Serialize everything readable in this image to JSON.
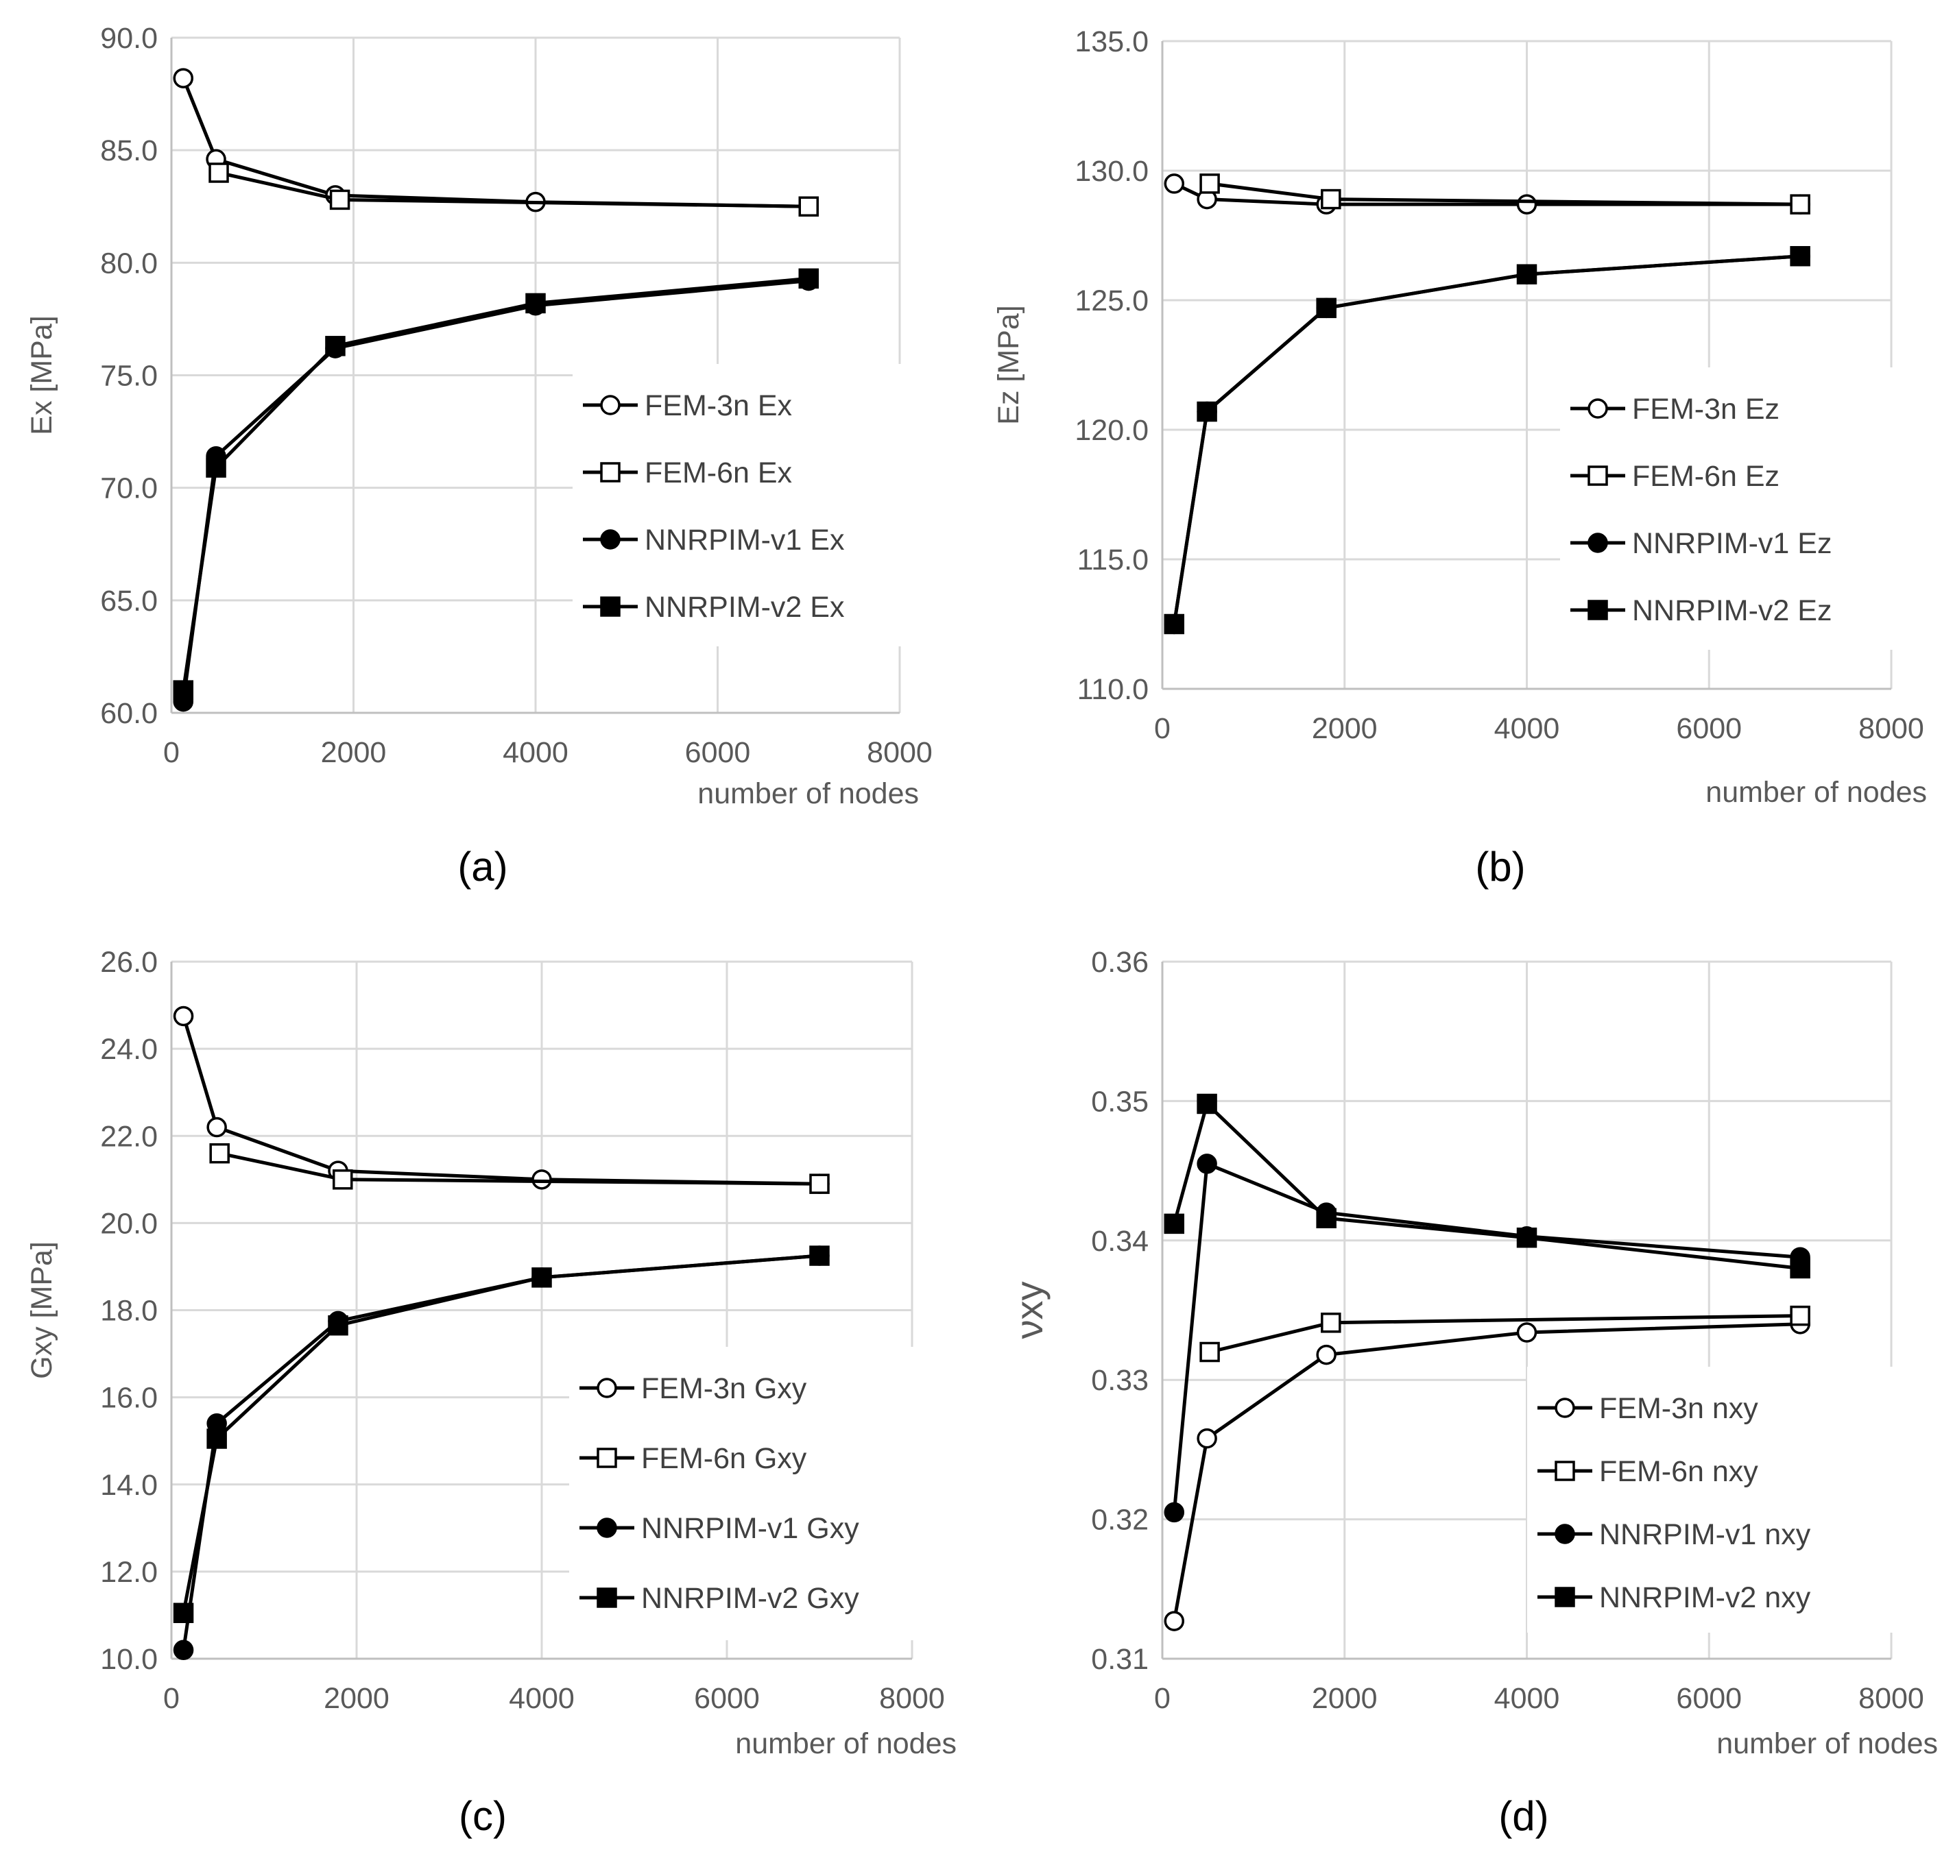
{
  "chart_data": [
    {
      "type": "line",
      "panel_label": "(a)",
      "ylabel": "Ex [MPa]",
      "xlabel": "number of nodes",
      "xlim": [
        0,
        8000
      ],
      "ylim": [
        60,
        90
      ],
      "xticks": [
        0,
        2000,
        4000,
        6000,
        8000
      ],
      "xtick_labels": [
        "0",
        "2000",
        "4000",
        "6000",
        "8000"
      ],
      "yticks": [
        60,
        65,
        70,
        75,
        80,
        85,
        90
      ],
      "ytick_labels": [
        "60.0",
        "65.0",
        "70.0",
        "75.0",
        "80.0",
        "85.0",
        "90.0"
      ],
      "grid": true,
      "legend_position": "right",
      "series": [
        {
          "name": "FEM-3n Ex",
          "marker": "circle-open",
          "x": [
            130,
            490,
            1800,
            4000,
            7000
          ],
          "y": [
            88.2,
            84.6,
            83.0,
            82.7,
            82.5
          ]
        },
        {
          "name": "FEM-6n Ex",
          "marker": "square-open",
          "x": [
            520,
            1850,
            7000
          ],
          "y": [
            84.0,
            82.8,
            82.5
          ]
        },
        {
          "name": "NNRPIM-v1 Ex",
          "marker": "circle-filled",
          "x": [
            130,
            490,
            1800,
            4000,
            7000
          ],
          "y": [
            60.5,
            71.4,
            76.2,
            78.1,
            79.2
          ]
        },
        {
          "name": "NNRPIM-v2 Ex",
          "marker": "square-filled",
          "x": [
            130,
            490,
            1800,
            4000,
            7000
          ],
          "y": [
            61.0,
            70.9,
            76.3,
            78.2,
            79.3
          ]
        }
      ]
    },
    {
      "type": "line",
      "panel_label": "(b)",
      "ylabel": "Ez [MPa]",
      "xlabel": "number of nodes",
      "xlim": [
        0,
        8000
      ],
      "ylim": [
        110,
        135
      ],
      "xticks": [
        0,
        2000,
        4000,
        6000,
        8000
      ],
      "xtick_labels": [
        "0",
        "2000",
        "4000",
        "6000",
        "8000"
      ],
      "yticks": [
        110,
        115,
        120,
        125,
        130,
        135
      ],
      "ytick_labels": [
        "110.0",
        "115.0",
        "120.0",
        "125.0",
        "130.0",
        "135.0"
      ],
      "grid": true,
      "legend_position": "right",
      "series": [
        {
          "name": "FEM-3n Ez",
          "marker": "circle-open",
          "x": [
            130,
            490,
            1800,
            4000,
            7000
          ],
          "y": [
            129.5,
            128.9,
            128.7,
            128.7,
            128.7
          ]
        },
        {
          "name": "FEM-6n Ez",
          "marker": "square-open",
          "x": [
            520,
            1850,
            7000
          ],
          "y": [
            129.5,
            128.9,
            128.7
          ]
        },
        {
          "name": "NNRPIM-v1 Ez",
          "marker": "circle-filled",
          "x": [
            130,
            490,
            1800,
            4000,
            7000
          ],
          "y": [
            112.5,
            120.7,
            124.7,
            126.0,
            126.7
          ]
        },
        {
          "name": "NNRPIM-v2 Ez",
          "marker": "square-filled",
          "x": [
            130,
            490,
            1800,
            4000,
            7000
          ],
          "y": [
            112.5,
            120.7,
            124.7,
            126.0,
            126.7
          ]
        }
      ]
    },
    {
      "type": "line",
      "panel_label": "(c)",
      "ylabel": "Gxy [MPa]",
      "xlabel": "number of nodes",
      "xlim": [
        0,
        8000
      ],
      "ylim": [
        10,
        26
      ],
      "xticks": [
        0,
        2000,
        4000,
        6000,
        8000
      ],
      "xtick_labels": [
        "0",
        "2000",
        "4000",
        "6000",
        "8000"
      ],
      "yticks": [
        10,
        12,
        14,
        16,
        18,
        20,
        22,
        24,
        26
      ],
      "ytick_labels": [
        "10.0",
        "12.0",
        "14.0",
        "16.0",
        "18.0",
        "20.0",
        "22.0",
        "24.0",
        "26.0"
      ],
      "grid": true,
      "legend_position": "right",
      "series": [
        {
          "name": "FEM-3n Gxy",
          "marker": "circle-open",
          "x": [
            130,
            490,
            1800,
            4000,
            7000
          ],
          "y": [
            24.75,
            22.2,
            21.2,
            21.0,
            20.9
          ]
        },
        {
          "name": "FEM-6n Gxy",
          "marker": "square-open",
          "x": [
            520,
            1850,
            7000
          ],
          "y": [
            21.6,
            21.0,
            20.9
          ]
        },
        {
          "name": "NNRPIM-v1 Gxy",
          "marker": "circle-filled",
          "x": [
            130,
            490,
            1800,
            4000,
            7000
          ],
          "y": [
            10.2,
            15.4,
            17.75,
            18.75,
            19.25
          ]
        },
        {
          "name": "NNRPIM-v2 Gxy",
          "marker": "square-filled",
          "x": [
            130,
            490,
            1800,
            4000,
            7000
          ],
          "y": [
            11.05,
            15.05,
            17.65,
            18.75,
            19.25
          ]
        }
      ]
    },
    {
      "type": "line",
      "panel_label": "(d)",
      "ylabel": "νxy",
      "xlabel": "number of nodes",
      "xlim": [
        0,
        8000
      ],
      "ylim": [
        0.31,
        0.36
      ],
      "xticks": [
        0,
        2000,
        4000,
        6000,
        8000
      ],
      "xtick_labels": [
        "0",
        "2000",
        "4000",
        "6000",
        "8000"
      ],
      "yticks": [
        0.31,
        0.32,
        0.33,
        0.34,
        0.35,
        0.36
      ],
      "ytick_labels": [
        "0.31",
        "0.32",
        "0.33",
        "0.34",
        "0.35",
        "0.36"
      ],
      "grid": true,
      "legend_position": "bottom-right",
      "series": [
        {
          "name": "FEM-3n nxy",
          "marker": "circle-open",
          "x": [
            130,
            490,
            1800,
            4000,
            7000
          ],
          "y": [
            0.3127,
            0.3258,
            0.3318,
            0.3334,
            0.334
          ]
        },
        {
          "name": "FEM-6n nxy",
          "marker": "square-open",
          "x": [
            520,
            1850,
            7000
          ],
          "y": [
            0.332,
            0.3341,
            0.3346
          ]
        },
        {
          "name": "NNRPIM-v1 nxy",
          "marker": "circle-filled",
          "x": [
            130,
            490,
            1800,
            4000,
            7000
          ],
          "y": [
            0.3205,
            0.3455,
            0.342,
            0.3403,
            0.3388
          ]
        },
        {
          "name": "NNRPIM-v2 nxy",
          "marker": "square-filled",
          "x": [
            130,
            490,
            1800,
            4000,
            7000
          ],
          "y": [
            0.3412,
            0.3498,
            0.3416,
            0.3402,
            0.338
          ]
        }
      ]
    }
  ]
}
